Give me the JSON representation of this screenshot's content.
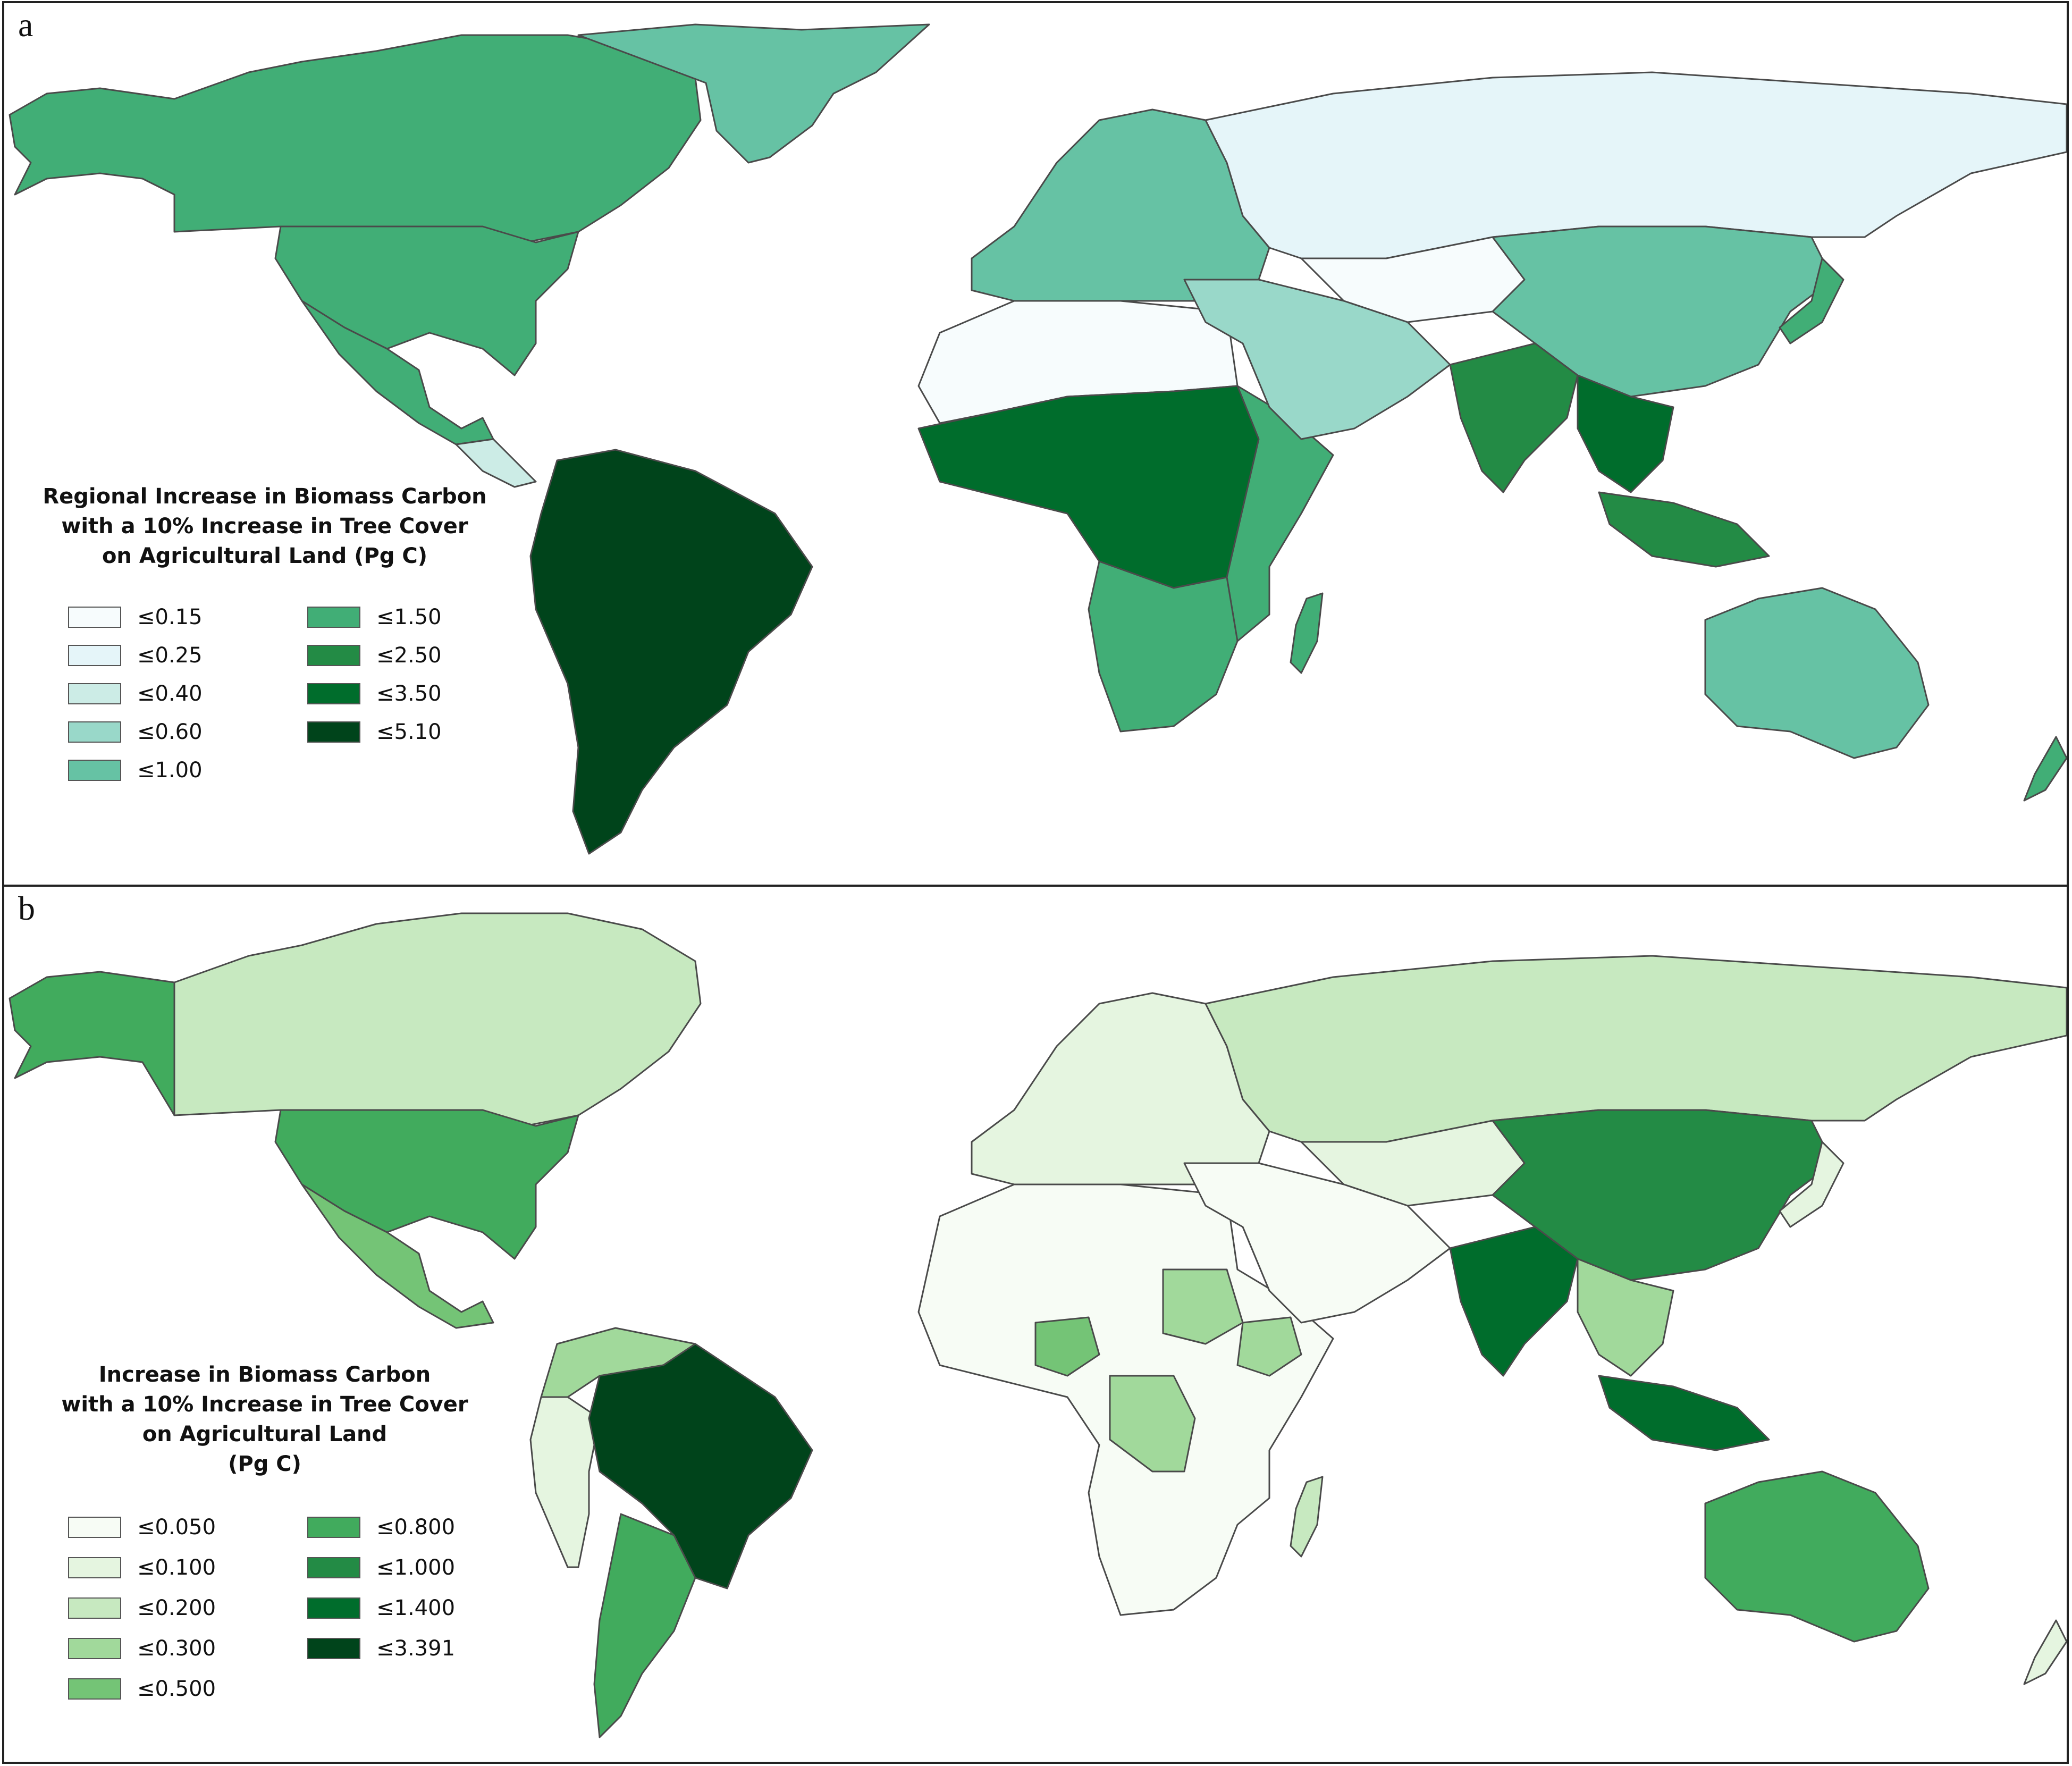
{
  "panel_a": {
    "letter": "a",
    "legend_title": [
      "Regional Increase in Biomass Carbon",
      "with a 10% Increase in Tree Cover",
      "on Agricultural Land (Pg C)"
    ],
    "legend": [
      {
        "label": "≤0.15",
        "color": "#f7fcfd"
      },
      {
        "label": "≤0.25",
        "color": "#e5f5f9"
      },
      {
        "label": "≤0.40",
        "color": "#ccece6"
      },
      {
        "label": "≤0.60",
        "color": "#99d8c9"
      },
      {
        "label": "≤1.00",
        "color": "#66c2a4"
      },
      {
        "label": "≤1.50",
        "color": "#41ae76"
      },
      {
        "label": "≤2.50",
        "color": "#238b45"
      },
      {
        "label": "≤3.50",
        "color": "#006d2c"
      },
      {
        "label": "≤5.10",
        "color": "#00441b"
      }
    ]
  },
  "panel_b": {
    "letter": "b",
    "legend_title": [
      "Increase in Biomass Carbon",
      "with a 10% Increase in Tree Cover",
      "on Agricultural Land",
      "(Pg C)"
    ],
    "legend": [
      {
        "label": "≤0.050",
        "color": "#f7fcf5"
      },
      {
        "label": "≤0.100",
        "color": "#e5f5e0"
      },
      {
        "label": "≤0.200",
        "color": "#c7e9c0"
      },
      {
        "label": "≤0.300",
        "color": "#a1d99b"
      },
      {
        "label": "≤0.500",
        "color": "#74c476"
      },
      {
        "label": "≤0.800",
        "color": "#41ab5d"
      },
      {
        "label": "≤1.000",
        "color": "#238b45"
      },
      {
        "label": "≤1.400",
        "color": "#006d2c"
      },
      {
        "label": "≤3.391",
        "color": "#00441b"
      }
    ]
  }
}
